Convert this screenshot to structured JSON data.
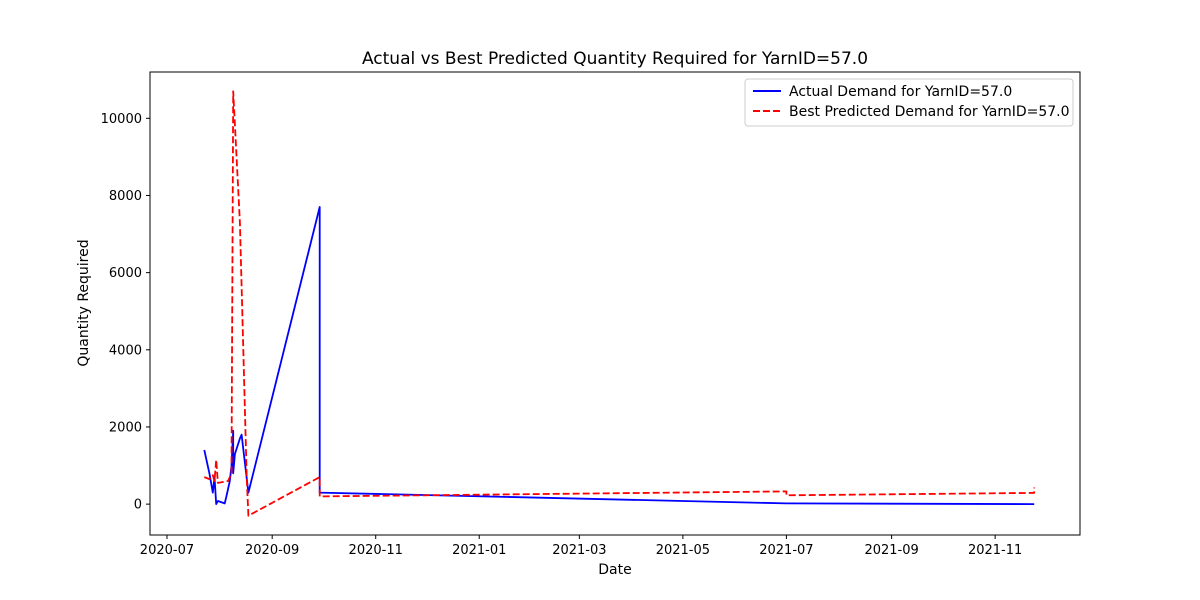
{
  "chart_data": {
    "type": "line",
    "title": "Actual vs Best Predicted Quantity Required for YarnID=57.0",
    "xlabel": "Date",
    "ylabel": "Quantity Required",
    "x_ticks": [
      "2020-07",
      "2020-09",
      "2020-11",
      "2021-01",
      "2021-03",
      "2021-05",
      "2021-07",
      "2021-09",
      "2021-11"
    ],
    "y_ticks": [
      0,
      2000,
      4000,
      6000,
      8000,
      10000
    ],
    "xlim": [
      "2020-06-21",
      "2021-12-21"
    ],
    "ylim": [
      -800,
      11200
    ],
    "grid": false,
    "legend_position": "top-right",
    "series": [
      {
        "name": "Actual Demand for YarnID=57.0",
        "color": "#0000ff",
        "style": "solid",
        "points": [
          [
            "2020-07-23",
            1400
          ],
          [
            "2020-07-26",
            800
          ],
          [
            "2020-07-28",
            300
          ],
          [
            "2020-07-29",
            700
          ],
          [
            "2020-07-30",
            0
          ],
          [
            "2020-07-31",
            80
          ],
          [
            "2020-08-04",
            20
          ],
          [
            "2020-08-05",
            200
          ],
          [
            "2020-08-06",
            400
          ],
          [
            "2020-08-07",
            600
          ],
          [
            "2020-08-08",
            1000
          ],
          [
            "2020-08-09",
            1900
          ],
          [
            "2020-08-09",
            800
          ],
          [
            "2020-08-10",
            1300
          ],
          [
            "2020-08-13",
            1700
          ],
          [
            "2020-08-14",
            1800
          ],
          [
            "2020-08-18",
            300
          ],
          [
            "2020-09-29",
            7700
          ],
          [
            "2020-09-29",
            300
          ],
          [
            "2021-07-01",
            20
          ],
          [
            "2021-11-24",
            0
          ]
        ]
      },
      {
        "name": "Best Predicted Demand for YarnID=57.0",
        "color": "#ff0000",
        "style": "dashed",
        "points": [
          [
            "2020-07-23",
            700
          ],
          [
            "2020-07-26",
            650
          ],
          [
            "2020-07-28",
            750
          ],
          [
            "2020-07-29",
            600
          ],
          [
            "2020-07-30",
            1150
          ],
          [
            "2020-07-31",
            550
          ],
          [
            "2020-08-06",
            600
          ],
          [
            "2020-08-08",
            800
          ],
          [
            "2020-08-09",
            10700
          ],
          [
            "2020-08-13",
            7300
          ],
          [
            "2020-08-17",
            700
          ],
          [
            "2020-08-18",
            -300
          ],
          [
            "2020-09-29",
            700
          ],
          [
            "2020-09-29",
            200
          ],
          [
            "2021-07-01",
            330
          ],
          [
            "2021-07-01",
            230
          ],
          [
            "2021-11-24",
            290
          ],
          [
            "2021-11-24",
            430
          ]
        ]
      }
    ]
  }
}
